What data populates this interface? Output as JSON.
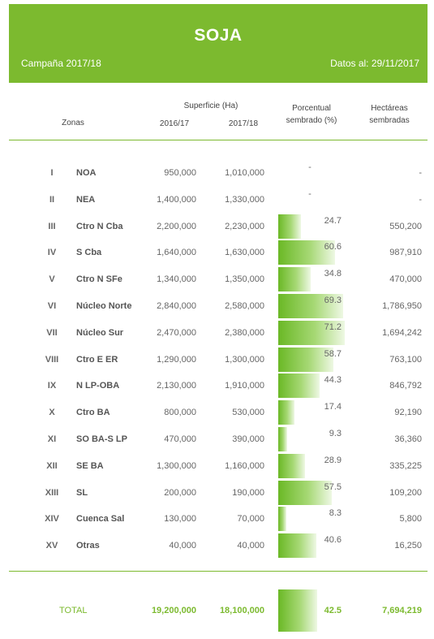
{
  "header": {
    "title": "SOJA",
    "campaign": "Campaña 2017/18",
    "date": "Datos al: 29/11/2017"
  },
  "columns": {
    "zones": "Zonas",
    "surface": "Superficie (Ha)",
    "y2016": "2016/17",
    "y2017": "2017/18",
    "pct_line1": "Porcentual",
    "pct_line2": "sembrado (%)",
    "ha_line1": "Hectáreas",
    "ha_line2": "sembradas"
  },
  "rows": [
    {
      "num": "I",
      "zone": "NOA",
      "s2016": "950,000",
      "s2017": "1,010,000",
      "pct": "-",
      "pct_value": 0,
      "ha": "-"
    },
    {
      "num": "II",
      "zone": "NEA",
      "s2016": "1,400,000",
      "s2017": "1,330,000",
      "pct": "-",
      "pct_value": 0,
      "ha": "-"
    },
    {
      "num": "III",
      "zone": "Ctro N Cba",
      "s2016": "2,200,000",
      "s2017": "2,230,000",
      "pct": "24.7",
      "pct_value": 24.7,
      "ha": "550,200"
    },
    {
      "num": "IV",
      "zone": "S Cba",
      "s2016": "1,640,000",
      "s2017": "1,630,000",
      "pct": "60.6",
      "pct_value": 60.6,
      "ha": "987,910"
    },
    {
      "num": "V",
      "zone": "Ctro N SFe",
      "s2016": "1,340,000",
      "s2017": "1,350,000",
      "pct": "34.8",
      "pct_value": 34.8,
      "ha": "470,000"
    },
    {
      "num": "VI",
      "zone": "Núcleo Norte",
      "s2016": "2,840,000",
      "s2017": "2,580,000",
      "pct": "69.3",
      "pct_value": 69.3,
      "ha": "1,786,950"
    },
    {
      "num": "VII",
      "zone": "Núcleo Sur",
      "s2016": "2,470,000",
      "s2017": "2,380,000",
      "pct": "71.2",
      "pct_value": 71.2,
      "ha": "1,694,242"
    },
    {
      "num": "VIII",
      "zone": "Ctro E ER",
      "s2016": "1,290,000",
      "s2017": "1,300,000",
      "pct": "58.7",
      "pct_value": 58.7,
      "ha": "763,100"
    },
    {
      "num": "IX",
      "zone": "N LP-OBA",
      "s2016": "2,130,000",
      "s2017": "1,910,000",
      "pct": "44.3",
      "pct_value": 44.3,
      "ha": "846,792"
    },
    {
      "num": "X",
      "zone": "Ctro BA",
      "s2016": "800,000",
      "s2017": "530,000",
      "pct": "17.4",
      "pct_value": 17.4,
      "ha": "92,190"
    },
    {
      "num": "XI",
      "zone": "SO BA-S LP",
      "s2016": "470,000",
      "s2017": "390,000",
      "pct": "9.3",
      "pct_value": 9.3,
      "ha": "36,360"
    },
    {
      "num": "XII",
      "zone": "SE BA",
      "s2016": "1,300,000",
      "s2017": "1,160,000",
      "pct": "28.9",
      "pct_value": 28.9,
      "ha": "335,225"
    },
    {
      "num": "XIII",
      "zone": "SL",
      "s2016": "200,000",
      "s2017": "190,000",
      "pct": "57.5",
      "pct_value": 57.5,
      "ha": "109,200"
    },
    {
      "num": "XIV",
      "zone": "Cuenca Sal",
      "s2016": "130,000",
      "s2017": "70,000",
      "pct": "8.3",
      "pct_value": 8.3,
      "ha": "5,800"
    },
    {
      "num": "XV",
      "zone": "Otras",
      "s2016": "40,000",
      "s2017": "40,000",
      "pct": "40.6",
      "pct_value": 40.6,
      "ha": "16,250"
    }
  ],
  "total": {
    "label": "TOTAL",
    "s2016": "19,200,000",
    "s2017": "18,100,000",
    "pct": "42.5",
    "pct_value": 42.5,
    "ha": "7,694,219"
  },
  "colors": {
    "accent": "#7cba2f"
  }
}
